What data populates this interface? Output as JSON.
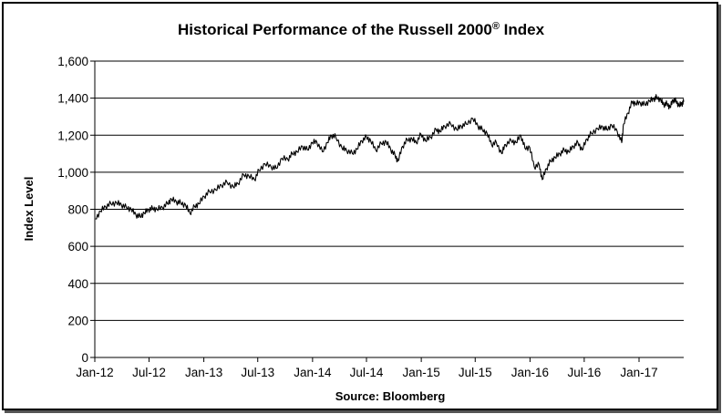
{
  "chart_data": {
    "type": "line",
    "title": "Historical Performance of the Russell 2000",
    "title_sup": "®",
    "title_suffix": " Index",
    "xlabel": "Source:  Bloomberg",
    "ylabel": "Index Level",
    "ylim": [
      0,
      1600
    ],
    "yticks": [
      0,
      200,
      400,
      600,
      800,
      1000,
      1200,
      1400,
      1600
    ],
    "ytick_labels": [
      "0",
      "200",
      "400",
      "600",
      "800",
      "1,000",
      "1,200",
      "1,400",
      "1,600"
    ],
    "xlim": [
      "2012-01-01",
      "2017-05-31"
    ],
    "xticks": [
      "2012-01-01",
      "2012-07-01",
      "2013-01-01",
      "2013-07-01",
      "2014-01-01",
      "2014-07-01",
      "2015-01-01",
      "2015-07-01",
      "2016-01-01",
      "2016-07-01",
      "2017-01-01"
    ],
    "xtick_labels": [
      "Jan-12",
      "Jul-12",
      "Jan-13",
      "Jul-13",
      "Jan-14",
      "Jul-14",
      "Jan-15",
      "Jul-15",
      "Jan-16",
      "Jul-16",
      "Jan-17"
    ],
    "grid": "horizontal",
    "series": [
      {
        "color": "#000000",
        "points": [
          [
            "2012-01-03",
            748
          ],
          [
            "2012-01-20",
            790
          ],
          [
            "2012-02-06",
            815
          ],
          [
            "2012-02-24",
            830
          ],
          [
            "2012-03-14",
            835
          ],
          [
            "2012-03-30",
            825
          ],
          [
            "2012-04-16",
            810
          ],
          [
            "2012-05-02",
            800
          ],
          [
            "2012-05-18",
            770
          ],
          [
            "2012-06-01",
            760
          ],
          [
            "2012-06-15",
            780
          ],
          [
            "2012-06-29",
            798
          ],
          [
            "2012-07-13",
            805
          ],
          [
            "2012-07-27",
            800
          ],
          [
            "2012-08-15",
            810
          ],
          [
            "2012-09-01",
            830
          ],
          [
            "2012-09-14",
            855
          ],
          [
            "2012-10-01",
            840
          ],
          [
            "2012-10-15",
            835
          ],
          [
            "2012-11-01",
            822
          ],
          [
            "2012-11-15",
            780
          ],
          [
            "2012-12-01",
            815
          ],
          [
            "2012-12-15",
            830
          ],
          [
            "2013-01-02",
            870
          ],
          [
            "2013-01-20",
            895
          ],
          [
            "2013-02-10",
            905
          ],
          [
            "2013-03-01",
            930
          ],
          [
            "2013-03-20",
            945
          ],
          [
            "2013-04-10",
            920
          ],
          [
            "2013-04-25",
            940
          ],
          [
            "2013-05-15",
            985
          ],
          [
            "2013-06-01",
            980
          ],
          [
            "2013-06-20",
            960
          ],
          [
            "2013-07-05",
            1010
          ],
          [
            "2013-07-25",
            1045
          ],
          [
            "2013-08-15",
            1030
          ],
          [
            "2013-09-01",
            1020
          ],
          [
            "2013-09-20",
            1075
          ],
          [
            "2013-10-10",
            1070
          ],
          [
            "2013-10-25",
            1100
          ],
          [
            "2013-11-10",
            1110
          ],
          [
            "2013-11-28",
            1140
          ],
          [
            "2013-12-15",
            1120
          ],
          [
            "2013-12-31",
            1160
          ],
          [
            "2014-01-15",
            1165
          ],
          [
            "2014-02-03",
            1110
          ],
          [
            "2014-02-20",
            1160
          ],
          [
            "2014-03-05",
            1200
          ],
          [
            "2014-03-20",
            1190
          ],
          [
            "2014-04-10",
            1130
          ],
          [
            "2014-04-25",
            1120
          ],
          [
            "2014-05-15",
            1100
          ],
          [
            "2014-05-30",
            1125
          ],
          [
            "2014-06-15",
            1170
          ],
          [
            "2014-07-01",
            1190
          ],
          [
            "2014-07-15",
            1170
          ],
          [
            "2014-08-01",
            1120
          ],
          [
            "2014-08-20",
            1155
          ],
          [
            "2014-09-05",
            1165
          ],
          [
            "2014-09-20",
            1125
          ],
          [
            "2014-10-05",
            1090
          ],
          [
            "2014-10-15",
            1060
          ],
          [
            "2014-10-30",
            1140
          ],
          [
            "2014-11-15",
            1175
          ],
          [
            "2014-12-01",
            1180
          ],
          [
            "2014-12-15",
            1160
          ],
          [
            "2014-12-31",
            1205
          ],
          [
            "2015-01-15",
            1170
          ],
          [
            "2015-02-01",
            1190
          ],
          [
            "2015-02-20",
            1230
          ],
          [
            "2015-03-05",
            1220
          ],
          [
            "2015-03-20",
            1250
          ],
          [
            "2015-04-10",
            1260
          ],
          [
            "2015-04-30",
            1230
          ],
          [
            "2015-05-15",
            1250
          ],
          [
            "2015-06-01",
            1260
          ],
          [
            "2015-06-23",
            1290
          ],
          [
            "2015-07-10",
            1250
          ],
          [
            "2015-07-25",
            1230
          ],
          [
            "2015-08-10",
            1210
          ],
          [
            "2015-08-25",
            1150
          ],
          [
            "2015-09-10",
            1160
          ],
          [
            "2015-09-28",
            1100
          ],
          [
            "2015-10-10",
            1150
          ],
          [
            "2015-10-30",
            1170
          ],
          [
            "2015-11-15",
            1160
          ],
          [
            "2015-12-01",
            1200
          ],
          [
            "2015-12-15",
            1130
          ],
          [
            "2015-12-31",
            1135
          ],
          [
            "2016-01-15",
            1030
          ],
          [
            "2016-02-01",
            1040
          ],
          [
            "2016-02-11",
            960
          ],
          [
            "2016-02-25",
            1020
          ],
          [
            "2016-03-10",
            1060
          ],
          [
            "2016-03-25",
            1080
          ],
          [
            "2016-04-10",
            1100
          ],
          [
            "2016-04-25",
            1120
          ],
          [
            "2016-05-10",
            1110
          ],
          [
            "2016-05-25",
            1140
          ],
          [
            "2016-06-10",
            1160
          ],
          [
            "2016-06-24",
            1120
          ],
          [
            "2016-07-10",
            1180
          ],
          [
            "2016-07-25",
            1210
          ],
          [
            "2016-08-15",
            1235
          ],
          [
            "2016-09-01",
            1245
          ],
          [
            "2016-09-15",
            1230
          ],
          [
            "2016-10-01",
            1255
          ],
          [
            "2016-10-20",
            1220
          ],
          [
            "2016-11-04",
            1160
          ],
          [
            "2016-11-10",
            1260
          ],
          [
            "2016-11-25",
            1320
          ],
          [
            "2016-12-09",
            1380
          ],
          [
            "2016-12-20",
            1370
          ],
          [
            "2017-01-05",
            1375
          ],
          [
            "2017-01-20",
            1365
          ],
          [
            "2017-02-05",
            1385
          ],
          [
            "2017-02-20",
            1395
          ],
          [
            "2017-03-01",
            1405
          ],
          [
            "2017-03-15",
            1390
          ],
          [
            "2017-03-25",
            1365
          ],
          [
            "2017-04-05",
            1370
          ],
          [
            "2017-04-15",
            1350
          ],
          [
            "2017-04-25",
            1390
          ],
          [
            "2017-05-05",
            1385
          ],
          [
            "2017-05-15",
            1360
          ],
          [
            "2017-05-25",
            1370
          ],
          [
            "2017-05-31",
            1380
          ]
        ]
      }
    ]
  }
}
